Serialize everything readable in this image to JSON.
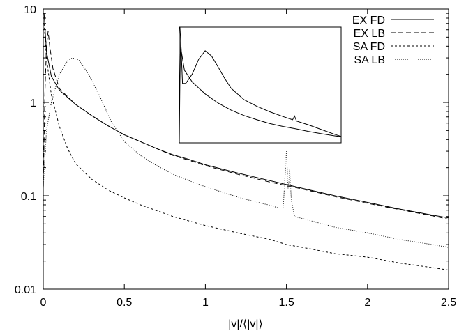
{
  "chart_data": {
    "type": "line",
    "xlabel": "|v|/⟨|v|⟩",
    "ylabel": "",
    "xlim": [
      0,
      2.5
    ],
    "ylim": [
      0.01,
      10
    ],
    "yscale": "log",
    "grid": false,
    "legend_position": "top-right",
    "x_ticks": [
      {
        "value": 0,
        "label": "0"
      },
      {
        "value": 0.5,
        "label": "0.5"
      },
      {
        "value": 1,
        "label": "1"
      },
      {
        "value": 1.5,
        "label": "1.5"
      },
      {
        "value": 2,
        "label": "2"
      },
      {
        "value": 2.5,
        "label": "2.5"
      }
    ],
    "y_ticks": [
      {
        "value": 0.01,
        "label": "0.01"
      },
      {
        "value": 0.1,
        "label": "0.1"
      },
      {
        "value": 1,
        "label": "1"
      },
      {
        "value": 10,
        "label": "10"
      }
    ],
    "series": [
      {
        "name": "EX FD",
        "dash": "",
        "points": [
          [
            0.005,
            9.0
          ],
          [
            0.02,
            3.5
          ],
          [
            0.05,
            1.9
          ],
          [
            0.1,
            1.35
          ],
          [
            0.2,
            0.95
          ],
          [
            0.3,
            0.72
          ],
          [
            0.4,
            0.56
          ],
          [
            0.5,
            0.45
          ],
          [
            0.6,
            0.38
          ],
          [
            0.7,
            0.32
          ],
          [
            0.8,
            0.275
          ],
          [
            0.9,
            0.245
          ],
          [
            1.0,
            0.215
          ],
          [
            1.2,
            0.175
          ],
          [
            1.4,
            0.145
          ],
          [
            1.6,
            0.12
          ],
          [
            1.8,
            0.1
          ],
          [
            2.0,
            0.085
          ],
          [
            2.2,
            0.072
          ],
          [
            2.4,
            0.062
          ],
          [
            2.5,
            0.058
          ]
        ]
      },
      {
        "name": "EX LB",
        "dash": "7,4",
        "points": [
          [
            0.0,
            0.12
          ],
          [
            0.01,
            1.2
          ],
          [
            0.02,
            4.0
          ],
          [
            0.03,
            5.8
          ],
          [
            0.04,
            4.0
          ],
          [
            0.06,
            2.3
          ],
          [
            0.1,
            1.4
          ],
          [
            0.2,
            0.95
          ],
          [
            0.3,
            0.72
          ],
          [
            0.4,
            0.56
          ],
          [
            0.5,
            0.45
          ],
          [
            0.6,
            0.38
          ],
          [
            0.7,
            0.32
          ],
          [
            0.8,
            0.27
          ],
          [
            0.9,
            0.24
          ],
          [
            1.0,
            0.21
          ],
          [
            1.2,
            0.17
          ],
          [
            1.4,
            0.14
          ],
          [
            1.6,
            0.118
          ],
          [
            1.8,
            0.098
          ],
          [
            2.0,
            0.083
          ],
          [
            2.2,
            0.071
          ],
          [
            2.4,
            0.061
          ],
          [
            2.5,
            0.056
          ]
        ]
      },
      {
        "name": "SA FD",
        "dash": "3,3",
        "points": [
          [
            0.005,
            7.0
          ],
          [
            0.02,
            3.0
          ],
          [
            0.05,
            1.2
          ],
          [
            0.1,
            0.55
          ],
          [
            0.15,
            0.32
          ],
          [
            0.2,
            0.22
          ],
          [
            0.3,
            0.15
          ],
          [
            0.4,
            0.115
          ],
          [
            0.5,
            0.095
          ],
          [
            0.6,
            0.08
          ],
          [
            0.8,
            0.06
          ],
          [
            1.0,
            0.048
          ],
          [
            1.2,
            0.04
          ],
          [
            1.4,
            0.034
          ],
          [
            1.5,
            0.03
          ],
          [
            1.6,
            0.028
          ],
          [
            1.8,
            0.024
          ],
          [
            2.0,
            0.022
          ],
          [
            2.2,
            0.019
          ],
          [
            2.4,
            0.017
          ],
          [
            2.5,
            0.016
          ]
        ]
      },
      {
        "name": "SA LB",
        "dash": "1,2",
        "points": [
          [
            0.0,
            0.12
          ],
          [
            0.02,
            0.5
          ],
          [
            0.05,
            1.0
          ],
          [
            0.1,
            2.0
          ],
          [
            0.15,
            2.8
          ],
          [
            0.18,
            3.0
          ],
          [
            0.22,
            2.85
          ],
          [
            0.28,
            2.0
          ],
          [
            0.35,
            1.15
          ],
          [
            0.42,
            0.62
          ],
          [
            0.5,
            0.38
          ],
          [
            0.6,
            0.27
          ],
          [
            0.7,
            0.21
          ],
          [
            0.8,
            0.17
          ],
          [
            0.9,
            0.145
          ],
          [
            1.0,
            0.125
          ],
          [
            1.1,
            0.11
          ],
          [
            1.2,
            0.097
          ],
          [
            1.3,
            0.087
          ],
          [
            1.4,
            0.079
          ],
          [
            1.45,
            0.074
          ],
          [
            1.48,
            0.074
          ],
          [
            1.49,
            0.15
          ],
          [
            1.5,
            0.3
          ],
          [
            1.51,
            0.12
          ],
          [
            1.515,
            0.14
          ],
          [
            1.52,
            0.19
          ],
          [
            1.53,
            0.09
          ],
          [
            1.55,
            0.06
          ],
          [
            1.6,
            0.057
          ],
          [
            1.8,
            0.046
          ],
          [
            2.0,
            0.04
          ],
          [
            2.2,
            0.034
          ],
          [
            2.4,
            0.03
          ],
          [
            2.5,
            0.028
          ]
        ]
      }
    ],
    "inset": {
      "x_range": [
        0,
        2.5
      ],
      "y_range": [
        0.09,
        8
      ],
      "yscale": "log",
      "series": [
        {
          "name": "EX FD",
          "dash": "",
          "points": [
            [
              0.01,
              8
            ],
            [
              0.03,
              3.2
            ],
            [
              0.08,
              1.5
            ],
            [
              0.2,
              0.95
            ],
            [
              0.4,
              0.6
            ],
            [
              0.6,
              0.42
            ],
            [
              0.8,
              0.32
            ],
            [
              1.0,
              0.26
            ],
            [
              1.2,
              0.22
            ],
            [
              1.4,
              0.19
            ],
            [
              1.6,
              0.17
            ],
            [
              1.8,
              0.155
            ],
            [
              2.0,
              0.14
            ],
            [
              2.2,
              0.128
            ],
            [
              2.4,
              0.118
            ],
            [
              2.5,
              0.114
            ]
          ]
        },
        {
          "name": "SA LB",
          "dash": "",
          "points": [
            [
              0.0,
              0.09
            ],
            [
              0.01,
              1.0
            ],
            [
              0.02,
              6.0
            ],
            [
              0.03,
              3.0
            ],
            [
              0.05,
              0.9
            ],
            [
              0.1,
              0.9
            ],
            [
              0.2,
              1.3
            ],
            [
              0.3,
              2.3
            ],
            [
              0.4,
              3.2
            ],
            [
              0.5,
              2.6
            ],
            [
              0.6,
              1.7
            ],
            [
              0.7,
              1.1
            ],
            [
              0.8,
              0.75
            ],
            [
              1.0,
              0.48
            ],
            [
              1.2,
              0.37
            ],
            [
              1.4,
              0.3
            ],
            [
              1.6,
              0.25
            ],
            [
              1.75,
              0.22
            ],
            [
              1.78,
              0.255
            ],
            [
              1.81,
              0.21
            ],
            [
              2.0,
              0.18
            ],
            [
              2.2,
              0.15
            ],
            [
              2.4,
              0.125
            ],
            [
              2.5,
              0.115
            ]
          ]
        }
      ]
    }
  }
}
